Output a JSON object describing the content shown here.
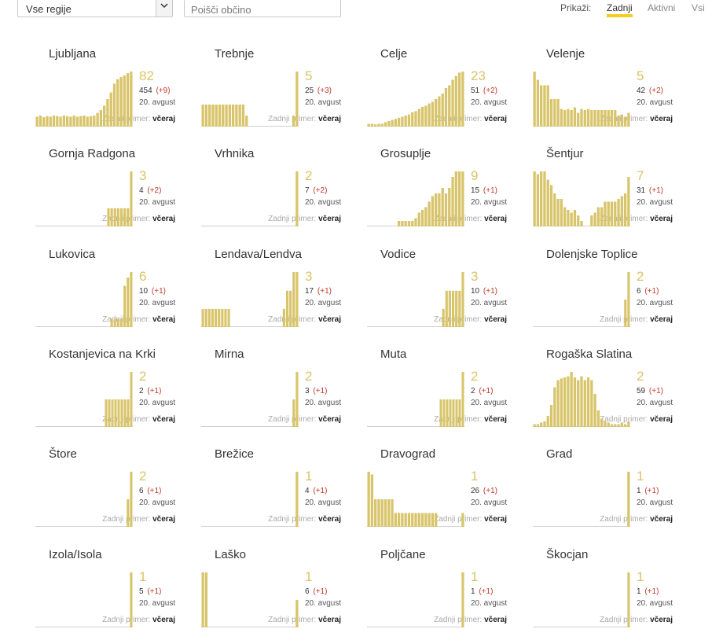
{
  "filters": {
    "region_select_value": "Vse regije",
    "search_placeholder": "Poišči občino",
    "show_label": "Prikaži:",
    "show_options": [
      "Zadnji",
      "Aktivni",
      "Vsi"
    ],
    "active_option": "Zadnji"
  },
  "colors": {
    "bar": "#d8c46a",
    "accent": "#f5cd1e",
    "delta": "#c0392b"
  },
  "cards": [
    {
      "name": "Ljubljana",
      "big": "82",
      "total": "454",
      "delta": "(+9)",
      "date": "20. avgust",
      "last_label": "Zadnji primer:",
      "last_value": "včeraj",
      "bars": [
        0.18,
        0.2,
        0.17,
        0.19,
        0.18,
        0.2,
        0.19,
        0.18,
        0.2,
        0.19,
        0.18,
        0.2,
        0.18,
        0.19,
        0.2,
        0.18,
        0.19,
        0.2,
        0.25,
        0.3,
        0.38,
        0.5,
        0.62,
        0.78,
        0.86,
        0.9,
        0.93,
        0.97,
        1.0
      ]
    },
    {
      "name": "Trebnje",
      "big": "5",
      "total": "25",
      "delta": "(+3)",
      "date": "20. avgust",
      "last_label": "Zadnji primer:",
      "last_value": "včeraj",
      "bars": [
        0.4,
        0.4,
        0.4,
        0.4,
        0.4,
        0.4,
        0.4,
        0.4,
        0.4,
        0.4,
        0.4,
        0.4,
        0.4,
        0.2,
        0,
        0,
        0,
        0,
        0,
        0,
        0,
        0,
        0,
        0,
        0,
        0,
        0,
        0.2,
        1.0
      ]
    },
    {
      "name": "Celje",
      "big": "23",
      "total": "51",
      "delta": "(+2)",
      "date": "20. avgust",
      "last_label": "Zadnji primer:",
      "last_value": "včeraj",
      "bars": [
        0.05,
        0.05,
        0.04,
        0.05,
        0.05,
        0.08,
        0.1,
        0.12,
        0.14,
        0.16,
        0.18,
        0.2,
        0.22,
        0.26,
        0.28,
        0.32,
        0.36,
        0.38,
        0.42,
        0.45,
        0.5,
        0.55,
        0.6,
        0.7,
        0.75,
        0.85,
        0.92,
        0.98,
        1.0
      ]
    },
    {
      "name": "Velenje",
      "big": "5",
      "total": "42",
      "delta": "(+2)",
      "date": "20. avgust",
      "last_label": "Zadnji primer:",
      "last_value": "včeraj",
      "bars": [
        1.0,
        0.85,
        0.75,
        0.75,
        0.75,
        0.5,
        0.5,
        0.5,
        0.32,
        0.3,
        0.32,
        0.3,
        0.35,
        0.25,
        0.32,
        0.3,
        0.32,
        0.3,
        0.3,
        0.3,
        0.3,
        0.3,
        0.3,
        0.3,
        0.3,
        0.2,
        0.22,
        0.18,
        0.25
      ]
    },
    {
      "name": "Gornja Radgona",
      "big": "3",
      "total": "4",
      "delta": "(+2)",
      "date": "20. avgust",
      "last_label": "Zadnji primer:",
      "last_value": "včeraj",
      "bars": [
        0,
        0,
        0,
        0,
        0,
        0,
        0,
        0,
        0,
        0,
        0,
        0,
        0,
        0,
        0,
        0,
        0,
        0,
        0,
        0,
        0,
        0,
        0.33,
        0.33,
        0.33,
        0.33,
        0.33,
        0.33,
        0.33,
        1.0
      ]
    },
    {
      "name": "Vrhnika",
      "big": "2",
      "total": "7",
      "delta": "(+2)",
      "date": "20. avgust",
      "last_label": "Zadnji primer:",
      "last_value": "včeraj",
      "bars": [
        0,
        0,
        0,
        0,
        0,
        0,
        0,
        0,
        0,
        0,
        0,
        0,
        0,
        0,
        0,
        0,
        0,
        0,
        0,
        0,
        0,
        0,
        0,
        0,
        0,
        0,
        0,
        0,
        1.0
      ]
    },
    {
      "name": "Grosuplje",
      "big": "9",
      "total": "15",
      "delta": "(+1)",
      "date": "20. avgust",
      "last_label": "Zadnji primer:",
      "last_value": "včeraj",
      "bars": [
        0,
        0,
        0,
        0,
        0,
        0,
        0,
        0,
        0,
        0.1,
        0.1,
        0.1,
        0.1,
        0.1,
        0.15,
        0.25,
        0.3,
        0.35,
        0.45,
        0.55,
        0.6,
        0.6,
        0.7,
        0.6,
        0.7,
        0.9,
        1.0,
        1.0,
        1.0
      ]
    },
    {
      "name": "Šentjur",
      "big": "7",
      "total": "31",
      "delta": "(+1)",
      "date": "20. avgust",
      "last_label": "Zadnji primer:",
      "last_value": "včeraj",
      "bars": [
        1.0,
        0.95,
        1.0,
        1.0,
        0.85,
        0.75,
        0.6,
        0.5,
        0.5,
        0.35,
        0.3,
        0.25,
        0.3,
        0.2,
        0.1,
        0,
        0,
        0.2,
        0.25,
        0.35,
        0.35,
        0.45,
        0.45,
        0.45,
        0.45,
        0.5,
        0.55,
        0.6,
        0.9
      ]
    },
    {
      "name": "Lukovica",
      "big": "6",
      "total": "10",
      "delta": "(+1)",
      "date": "20. avgust",
      "last_label": "Zadnji primer:",
      "last_value": "včeraj",
      "bars": [
        0,
        0,
        0,
        0,
        0,
        0,
        0,
        0,
        0,
        0,
        0,
        0,
        0,
        0,
        0,
        0,
        0,
        0,
        0,
        0,
        0,
        0,
        0,
        0.15,
        0.15,
        0.15,
        0.15,
        0.75,
        0.9,
        1.0
      ]
    },
    {
      "name": "Lendava/Lendva",
      "big": "3",
      "total": "17",
      "delta": "(+1)",
      "date": "20. avgust",
      "last_label": "Zadnji primer:",
      "last_value": "včeraj",
      "bars": [
        0.33,
        0.33,
        0.33,
        0.33,
        0.33,
        0.33,
        0.33,
        0.33,
        0.33,
        0,
        0,
        0,
        0,
        0,
        0,
        0,
        0,
        0,
        0,
        0,
        0,
        0,
        0,
        0,
        0,
        0.33,
        0.66,
        0.66,
        1.0,
        1.0
      ]
    },
    {
      "name": "Vodice",
      "big": "3",
      "total": "10",
      "delta": "(+1)",
      "date": "20. avgust",
      "last_label": "Zadnji primer:",
      "last_value": "včeraj",
      "bars": [
        0,
        0,
        0,
        0,
        0,
        0,
        0,
        0,
        0,
        0,
        0,
        0,
        0,
        0,
        0,
        0,
        0,
        0,
        0,
        0,
        0,
        0,
        0,
        0.33,
        0.66,
        0.66,
        0.66,
        0.66,
        0.66,
        1.0
      ]
    },
    {
      "name": "Dolenjske Toplice",
      "big": "2",
      "total": "6",
      "delta": "(+1)",
      "date": "20. avgust",
      "last_label": "Zadnji primer:",
      "last_value": "včeraj",
      "bars": [
        0,
        0,
        0,
        0,
        0,
        0,
        0,
        0,
        0,
        0,
        0,
        0,
        0,
        0,
        0,
        0,
        0,
        0,
        0,
        0,
        0,
        0,
        0,
        0,
        0,
        0,
        0,
        0,
        0.5,
        1.0
      ]
    },
    {
      "name": "Kostanjevica na Krki",
      "big": "2",
      "total": "2",
      "delta": "(+1)",
      "date": "20. avgust",
      "last_label": "Zadnji primer:",
      "last_value": "včeraj",
      "bars": [
        0,
        0,
        0,
        0,
        0,
        0,
        0,
        0,
        0,
        0,
        0,
        0,
        0,
        0,
        0,
        0,
        0,
        0,
        0,
        0,
        0,
        0,
        0.5,
        0.5,
        0.5,
        0.5,
        0.5,
        0.5,
        0.5,
        0.5,
        1.0
      ]
    },
    {
      "name": "Mirna",
      "big": "2",
      "total": "3",
      "delta": "(+1)",
      "date": "20. avgust",
      "last_label": "Zadnji primer:",
      "last_value": "včeraj",
      "bars": [
        0,
        0,
        0,
        0,
        0,
        0,
        0,
        0,
        0,
        0,
        0,
        0,
        0,
        0,
        0,
        0,
        0,
        0,
        0,
        0,
        0,
        0,
        0,
        0,
        0,
        0,
        0,
        0,
        0.5,
        1.0
      ]
    },
    {
      "name": "Muta",
      "big": "2",
      "total": "2",
      "delta": "(+1)",
      "date": "20. avgust",
      "last_label": "Zadnji primer:",
      "last_value": "včeraj",
      "bars": [
        0,
        0,
        0,
        0,
        0,
        0,
        0,
        0,
        0,
        0,
        0,
        0,
        0,
        0,
        0,
        0,
        0,
        0,
        0,
        0,
        0,
        0,
        0,
        0.5,
        0.5,
        0.5,
        0.5,
        0.5,
        0.5,
        0.5,
        1.0
      ]
    },
    {
      "name": "Rogaška Slatina",
      "big": "2",
      "total": "59",
      "delta": "(+1)",
      "date": "20. avgust",
      "last_label": "Zadnji primer:",
      "last_value": "včeraj",
      "bars": [
        0.05,
        0.05,
        0.08,
        0.1,
        0.2,
        0.4,
        0.72,
        0.85,
        0.88,
        0.9,
        0.92,
        1.0,
        0.9,
        0.85,
        0.92,
        0.85,
        0.9,
        0.85,
        0.6,
        0.3,
        0.15,
        0.1,
        0.08,
        0.05,
        0.05,
        0.05,
        0.08,
        0.05,
        0.1
      ]
    },
    {
      "name": "Štore",
      "big": "2",
      "total": "6",
      "delta": "(+1)",
      "date": "20. avgust",
      "last_label": "Zadnji primer:",
      "last_value": "včeraj",
      "bars": [
        0,
        0,
        0,
        0,
        0,
        0,
        0,
        0,
        0,
        0,
        0,
        0,
        0,
        0,
        0,
        0,
        0,
        0,
        0,
        0,
        0,
        0,
        0,
        0,
        0,
        0,
        0,
        0,
        0.5,
        1.0
      ]
    },
    {
      "name": "Brežice",
      "big": "1",
      "total": "4",
      "delta": "(+1)",
      "date": "20. avgust",
      "last_label": "Zadnji primer:",
      "last_value": "včeraj",
      "bars": [
        0,
        0,
        0,
        0,
        0,
        0,
        0,
        0,
        0,
        0,
        0,
        0,
        0,
        0,
        0,
        0,
        0,
        0,
        0,
        0,
        0,
        0,
        0,
        0,
        0,
        0,
        0,
        0,
        1.0
      ]
    },
    {
      "name": "Dravograd",
      "big": "1",
      "total": "26",
      "delta": "(+1)",
      "date": "20. avgust",
      "last_label": "Zadnji primer:",
      "last_value": "včeraj",
      "bars": [
        1.0,
        0.95,
        0.5,
        0.5,
        0.5,
        0.5,
        0.5,
        0.5,
        0.25,
        0.25,
        0.25,
        0.25,
        0.25,
        0.25,
        0.25,
        0.25,
        0.25,
        0.25,
        0.25,
        0.25,
        0.25,
        0,
        0,
        0,
        0,
        0,
        0,
        0,
        0.25
      ]
    },
    {
      "name": "Grad",
      "big": "1",
      "total": "1",
      "delta": "(+1)",
      "date": "20. avgust",
      "last_label": "Zadnji primer:",
      "last_value": "včeraj",
      "bars": [
        0,
        0,
        0,
        0,
        0,
        0,
        0,
        0,
        0,
        0,
        0,
        0,
        0,
        0,
        0,
        0,
        0,
        0,
        0,
        0,
        0,
        0,
        0,
        0,
        0,
        0,
        0,
        0,
        1.0
      ]
    },
    {
      "name": "Izola/Isola",
      "big": "1",
      "total": "5",
      "delta": "(+1)",
      "date": "20. avgust",
      "last_label": "Zadnji primer:",
      "last_value": "včeraj",
      "bars": [
        0,
        0,
        0,
        0,
        0,
        0,
        0,
        0,
        0,
        0,
        0,
        0,
        0,
        0,
        0,
        0,
        0,
        0,
        0,
        0,
        0,
        0,
        0,
        0,
        0,
        0,
        0,
        0,
        0,
        1.0
      ]
    },
    {
      "name": "Laško",
      "big": "1",
      "total": "6",
      "delta": "(+1)",
      "date": "20. avgust",
      "last_label": "Zadnji primer:",
      "last_value": "včeraj",
      "bars": [
        1.0,
        1.0,
        0,
        0,
        0,
        0,
        0,
        0,
        0,
        0,
        0,
        0,
        0,
        0,
        0,
        0,
        0,
        0,
        0,
        0,
        0,
        0,
        0,
        0,
        0,
        0,
        0,
        0,
        0.5
      ]
    },
    {
      "name": "Poljčane",
      "big": "1",
      "total": "1",
      "delta": "(+1)",
      "date": "20. avgust",
      "last_label": "Zadnji primer:",
      "last_value": "včeraj",
      "bars": [
        0,
        0,
        0,
        0,
        0,
        0,
        0,
        0,
        0,
        0,
        0,
        0,
        0,
        0,
        0,
        0,
        0,
        0,
        0,
        0,
        0,
        0,
        0,
        0,
        0,
        0,
        0,
        0,
        0,
        1.0
      ]
    },
    {
      "name": "Škocjan",
      "big": "1",
      "total": "1",
      "delta": "(+1)",
      "date": "20. avgust",
      "last_label": "Zadnji primer:",
      "last_value": "včeraj",
      "bars": [
        0,
        0,
        0,
        0,
        0,
        0,
        0,
        0,
        0,
        0,
        0,
        0,
        0,
        0,
        0,
        0,
        0,
        0,
        0,
        0,
        0,
        0,
        0,
        0,
        0,
        0,
        0,
        0,
        0,
        1.0
      ]
    }
  ]
}
